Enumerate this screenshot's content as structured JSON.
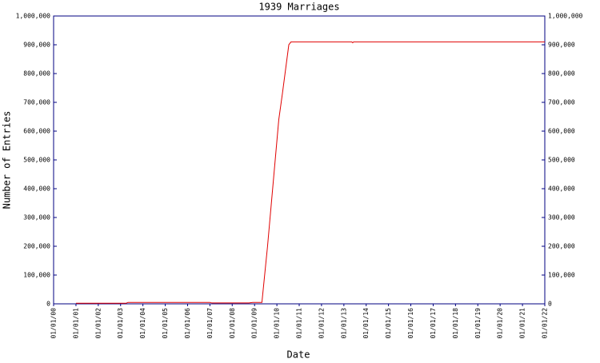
{
  "chart_data": {
    "type": "line",
    "title": "1939 Marriages",
    "x_label": "Date",
    "y_label": "Number of Entries",
    "x": [
      "01/01/01",
      "04/01/03",
      "05/01/03",
      "01/01/07",
      "02/01/07",
      "10/01/08",
      "12/01/08",
      "05/01/09",
      "08/01/09",
      "11/01/09",
      "02/01/10",
      "04/01/10",
      "07/15/10",
      "08/20/10",
      "05/10/13",
      "05/25/13",
      "06/10/13",
      "01/01/22"
    ],
    "values": [
      2000,
      2000,
      5000,
      5000,
      3000,
      3000,
      5000,
      5000,
      200000,
      420000,
      640000,
      730000,
      900000,
      910000,
      910000,
      907000,
      910000,
      910000
    ],
    "color": "#e00000",
    "axis_color": "#000080",
    "xlim": [
      "01/01/00",
      "01/01/22"
    ],
    "xticks": [
      "01/01/00",
      "01/01/01",
      "01/01/02",
      "01/01/03",
      "01/01/04",
      "01/01/05",
      "01/01/06",
      "01/01/07",
      "01/01/08",
      "01/01/09",
      "01/01/10",
      "01/01/11",
      "01/01/12",
      "01/01/13",
      "01/01/14",
      "01/01/15",
      "01/01/16",
      "01/01/17",
      "01/01/18",
      "01/01/19",
      "01/01/20",
      "01/01/21",
      "01/01/22"
    ],
    "ylim": [
      0,
      1000000
    ],
    "yticks": [
      0,
      {
        "value": 100000,
        "label": "100,000"
      },
      {
        "value": 200000,
        "label": "200,000"
      },
      {
        "value": 300000,
        "label": "300,000"
      },
      {
        "value": 400000,
        "label": "400,000"
      },
      {
        "value": 500000,
        "label": "500,000"
      },
      {
        "value": 600000,
        "label": "600,000"
      },
      {
        "value": 700000,
        "label": "700,000"
      },
      {
        "value": 800000,
        "label": "800,000"
      },
      {
        "value": 900000,
        "label": "900,000"
      },
      {
        "value": 1000000,
        "label": "1,000,000"
      }
    ],
    "right_axis_labels": true
  }
}
